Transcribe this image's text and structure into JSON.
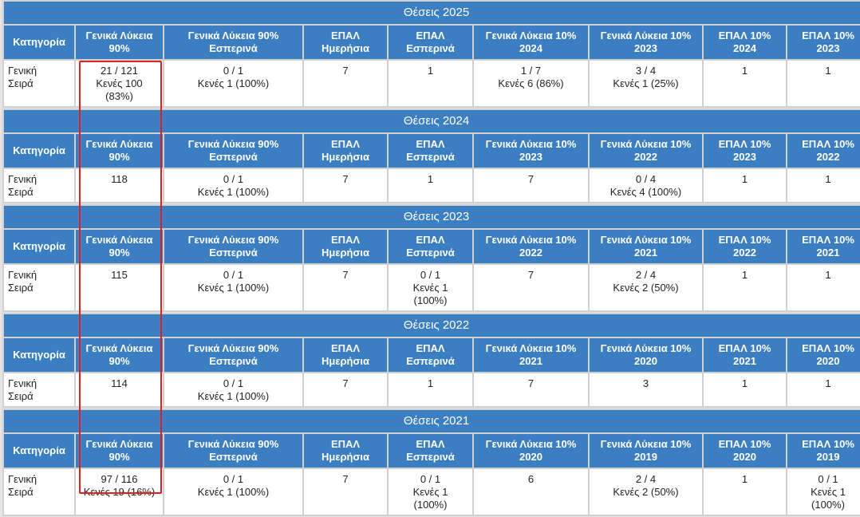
{
  "blocks": [
    {
      "title": "Θέσεις 2025",
      "headers": [
        [
          "Κατηγορία"
        ],
        [
          "Γενικά Λύκεια",
          "90%"
        ],
        [
          "Γενικά Λύκεια 90%",
          "Εσπερινά"
        ],
        [
          "ΕΠΑΛ",
          "Ημερήσια"
        ],
        [
          "ΕΠΑΛ",
          "Εσπερινά"
        ],
        [
          "Γενικά Λύκεια 10%",
          "2024"
        ],
        [
          "Γενικά Λύκεια 10%",
          "2023"
        ],
        [
          "ΕΠΑΛ 10%",
          "2024"
        ],
        [
          "ΕΠΑΛ 10%",
          "2023"
        ]
      ],
      "row": [
        [
          "Γενική",
          "Σειρά"
        ],
        [
          "21 / 121",
          "Κενές 100",
          "(83%)"
        ],
        [
          "0 / 1",
          "Κενές 1 (100%)"
        ],
        [
          "7"
        ],
        [
          "1"
        ],
        [
          "1 / 7",
          "Κενές 6 (86%)"
        ],
        [
          "3 / 4",
          "Κενές 1 (25%)"
        ],
        [
          "1"
        ],
        [
          "1"
        ]
      ]
    },
    {
      "title": "Θέσεις 2024",
      "headers": [
        [
          "Κατηγορία"
        ],
        [
          "Γενικά Λύκεια",
          "90%"
        ],
        [
          "Γενικά Λύκεια 90%",
          "Εσπερινά"
        ],
        [
          "ΕΠΑΛ",
          "Ημερήσια"
        ],
        [
          "ΕΠΑΛ",
          "Εσπερινά"
        ],
        [
          "Γενικά Λύκεια 10%",
          "2023"
        ],
        [
          "Γενικά Λύκεια 10%",
          "2022"
        ],
        [
          "ΕΠΑΛ 10%",
          "2023"
        ],
        [
          "ΕΠΑΛ 10%",
          "2022"
        ]
      ],
      "row": [
        [
          "Γενική",
          "Σειρά"
        ],
        [
          "118"
        ],
        [
          "0 / 1",
          "Κενές 1 (100%)"
        ],
        [
          "7"
        ],
        [
          "1"
        ],
        [
          "7"
        ],
        [
          "0 / 4",
          "Κενές 4 (100%)"
        ],
        [
          "1"
        ],
        [
          "1"
        ]
      ]
    },
    {
      "title": "Θέσεις 2023",
      "headers": [
        [
          "Κατηγορία"
        ],
        [
          "Γενικά Λύκεια",
          "90%"
        ],
        [
          "Γενικά Λύκεια 90%",
          "Εσπερινά"
        ],
        [
          "ΕΠΑΛ",
          "Ημερήσια"
        ],
        [
          "ΕΠΑΛ",
          "Εσπερινά"
        ],
        [
          "Γενικά Λύκεια 10%",
          "2022"
        ],
        [
          "Γενικά Λύκεια 10%",
          "2021"
        ],
        [
          "ΕΠΑΛ 10%",
          "2022"
        ],
        [
          "ΕΠΑΛ 10%",
          "2021"
        ]
      ],
      "row": [
        [
          "Γενική",
          "Σειρά"
        ],
        [
          "115"
        ],
        [
          "0 / 1",
          "Κενές 1 (100%)"
        ],
        [
          "7"
        ],
        [
          "0 / 1",
          "Κενές 1",
          "(100%)"
        ],
        [
          "7"
        ],
        [
          "2 / 4",
          "Κενές 2 (50%)"
        ],
        [
          "1"
        ],
        [
          "1"
        ]
      ]
    },
    {
      "title": "Θέσεις 2022",
      "headers": [
        [
          "Κατηγορία"
        ],
        [
          "Γενικά Λύκεια",
          "90%"
        ],
        [
          "Γενικά Λύκεια 90%",
          "Εσπερινά"
        ],
        [
          "ΕΠΑΛ",
          "Ημερήσια"
        ],
        [
          "ΕΠΑΛ",
          "Εσπερινά"
        ],
        [
          "Γενικά Λύκεια 10%",
          "2021"
        ],
        [
          "Γενικά Λύκεια 10%",
          "2020"
        ],
        [
          "ΕΠΑΛ 10%",
          "2021"
        ],
        [
          "ΕΠΑΛ 10%",
          "2020"
        ]
      ],
      "row": [
        [
          "Γενική",
          "Σειρά"
        ],
        [
          "114"
        ],
        [
          "0 / 1",
          "Κενές 1 (100%)"
        ],
        [
          "7"
        ],
        [
          "1"
        ],
        [
          "7"
        ],
        [
          "3"
        ],
        [
          "1"
        ],
        [
          "1"
        ]
      ]
    },
    {
      "title": "Θέσεις 2021",
      "headers": [
        [
          "Κατηγορία"
        ],
        [
          "Γενικά Λύκεια",
          "90%"
        ],
        [
          "Γενικά Λύκεια 90%",
          "Εσπερινά"
        ],
        [
          "ΕΠΑΛ",
          "Ημερήσια"
        ],
        [
          "ΕΠΑΛ",
          "Εσπερινά"
        ],
        [
          "Γενικά Λύκεια 10%",
          "2020"
        ],
        [
          "Γενικά Λύκεια 10%",
          "2019"
        ],
        [
          "ΕΠΑΛ 10%",
          "2020"
        ],
        [
          "ΕΠΑΛ 10%",
          "2019"
        ]
      ],
      "row": [
        [
          "Γενική",
          "Σειρά"
        ],
        [
          "97 / 116",
          "Κενές 19 (16%)"
        ],
        [
          "0 / 1",
          "Κενές 1 (100%)"
        ],
        [
          "7"
        ],
        [
          "0 / 1",
          "Κενές 1",
          "(100%)"
        ],
        [
          "6"
        ],
        [
          "2 / 4",
          "Κενές 2 (50%)"
        ],
        [
          "1"
        ],
        [
          "0 / 1",
          "Κενές 1",
          "(100%)"
        ]
      ]
    }
  ]
}
